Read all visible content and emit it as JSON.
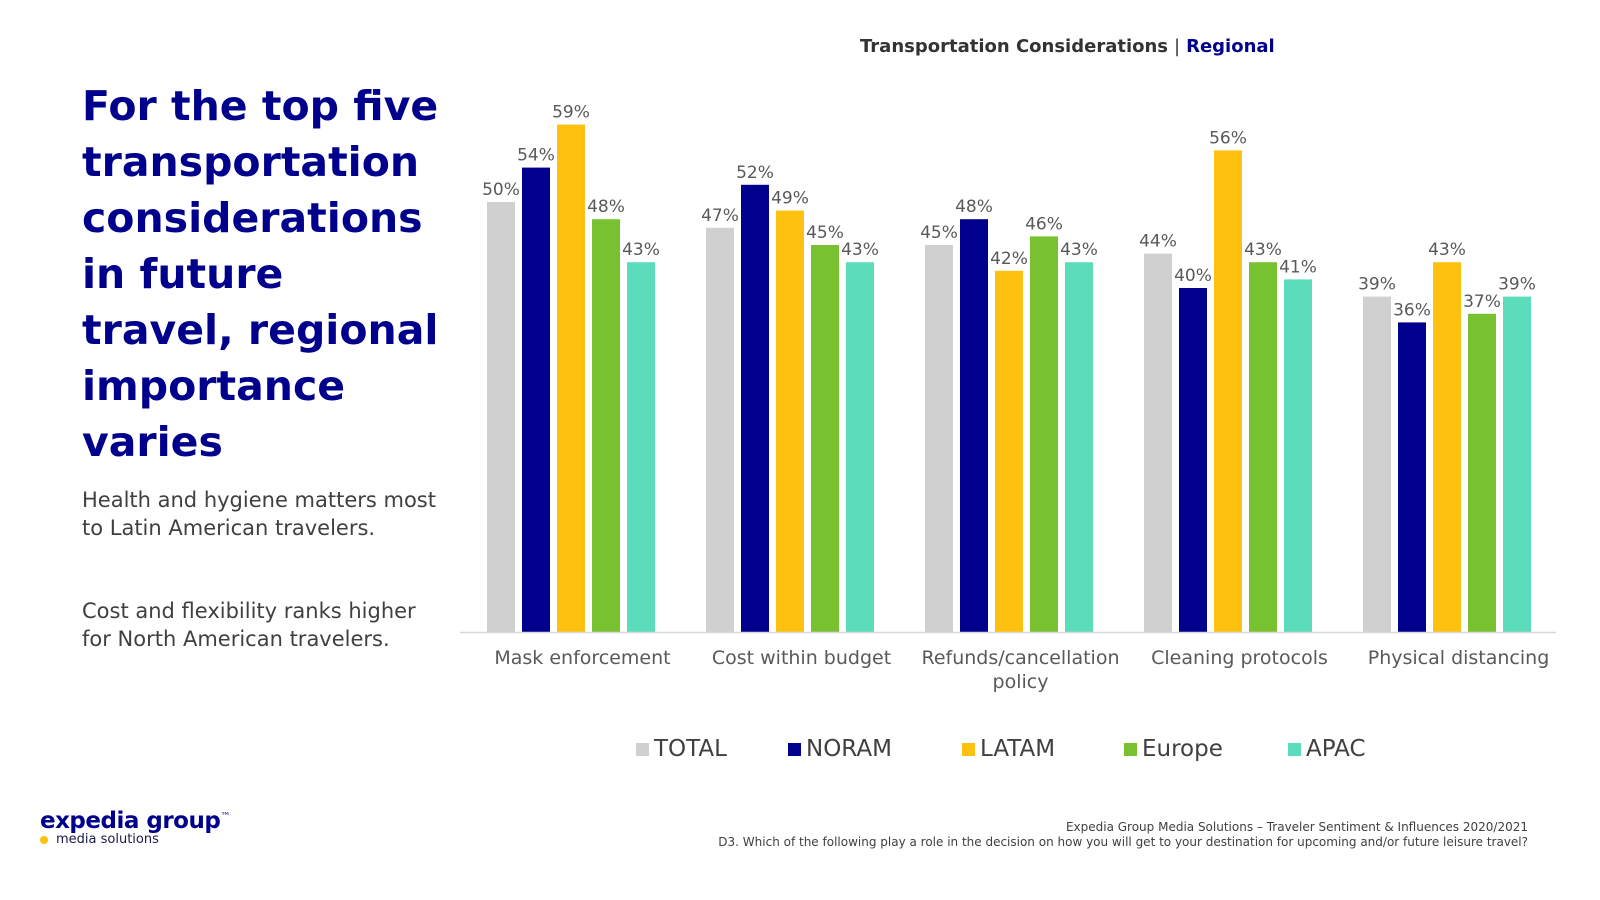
{
  "slide": {
    "headline": "For the top five transportation considerations in future travel, regional importance varies",
    "body_1": "Health and hygiene matters most to Latin American travelers.",
    "body_2": "Cost and flexibility ranks higher for North American travelers.",
    "chart_title_left": "Transportation Considerations",
    "chart_title_sep": "|",
    "chart_title_right": "Regional",
    "logo_main": "expedia group",
    "logo_tm": "™",
    "logo_sub": "media solutions",
    "footnote_1": "Expedia Group Media Solutions – Traveler Sentiment & Influences 2020/2021",
    "footnote_2": "D3. Which of the following play a role in the decision on how you will get to your destination for upcoming and/or future leisure travel?"
  },
  "chart_data": {
    "type": "bar",
    "title": "Transportation Considerations | Regional",
    "categories": [
      [
        "Mask enforcement"
      ],
      [
        "Cost within budget"
      ],
      [
        "Refunds/cancellation",
        "policy"
      ],
      [
        "Cleaning protocols"
      ],
      [
        "Physical distancing"
      ]
    ],
    "series": [
      {
        "name": "TOTAL",
        "color": "#d0d0d0",
        "values": [
          50,
          47,
          45,
          44,
          39
        ]
      },
      {
        "name": "NORAM",
        "color": "#00008c",
        "values": [
          54,
          52,
          48,
          40,
          36
        ]
      },
      {
        "name": "LATAM",
        "color": "#fec10f",
        "values": [
          59,
          49,
          42,
          56,
          43
        ]
      },
      {
        "name": "Europe",
        "color": "#78c232",
        "values": [
          48,
          45,
          46,
          43,
          37
        ]
      },
      {
        "name": "APAC",
        "color": "#5bdcba",
        "values": [
          43,
          43,
          43,
          41,
          39
        ]
      }
    ],
    "value_suffix": "%",
    "ylim": [
      0,
      62
    ],
    "xlabel": "",
    "ylabel": "",
    "grid": false,
    "legend_position": "bottom"
  }
}
